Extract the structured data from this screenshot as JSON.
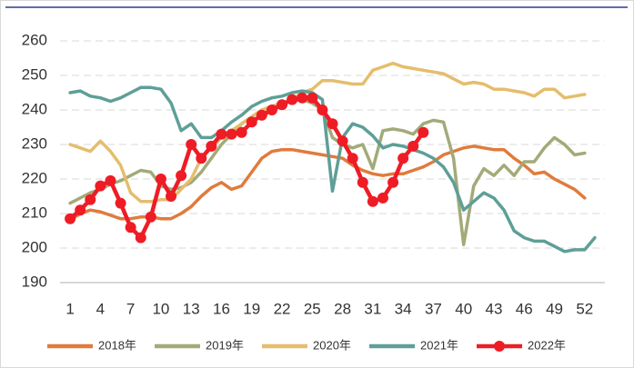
{
  "chart_data": {
    "type": "line",
    "x": [
      1,
      2,
      3,
      4,
      5,
      6,
      7,
      8,
      9,
      10,
      11,
      12,
      13,
      14,
      15,
      16,
      17,
      18,
      19,
      20,
      21,
      22,
      23,
      24,
      25,
      26,
      27,
      28,
      29,
      30,
      31,
      32,
      33,
      34,
      35,
      36,
      37,
      38,
      39,
      40,
      41,
      42,
      43,
      44,
      45,
      46,
      47,
      48,
      49,
      50,
      51,
      52,
      53
    ],
    "xlim": [
      0,
      54
    ],
    "xticks": [
      1,
      4,
      7,
      10,
      13,
      16,
      19,
      22,
      25,
      28,
      31,
      34,
      37,
      40,
      43,
      46,
      49,
      52
    ],
    "ylim": [
      190,
      260
    ],
    "yticks": [
      190,
      200,
      210,
      220,
      230,
      240,
      250,
      260
    ],
    "grid": true,
    "series": [
      {
        "name": "2018年",
        "color": "#e07b3c",
        "values": [
          208,
          210,
          211,
          210.5,
          209.5,
          208.5,
          208.5,
          209,
          209,
          208.5,
          208.5,
          210,
          212,
          215,
          217.5,
          219,
          217,
          218,
          222,
          226,
          228,
          228.5,
          228.5,
          228,
          227.5,
          227,
          226.5,
          226,
          224,
          222.5,
          221.5,
          221,
          221.5,
          221.5,
          222.5,
          223.5,
          225,
          227,
          228,
          229,
          229.5,
          229,
          228.5,
          228.5,
          226,
          224,
          221.5,
          222,
          220,
          218.5,
          217,
          214.5,
          null
        ]
      },
      {
        "name": "2019年",
        "color": "#a3aa78",
        "values": [
          213,
          214.5,
          216,
          217,
          218.5,
          219.5,
          221,
          222.5,
          222,
          218,
          217,
          217.5,
          219,
          222,
          226,
          230,
          233,
          236,
          238,
          240,
          241,
          242,
          242.5,
          243,
          242,
          240,
          232,
          230,
          229,
          230,
          223,
          234,
          234.5,
          234,
          233,
          236,
          237,
          236.5,
          226,
          201,
          218,
          223,
          221,
          224,
          221,
          225,
          225,
          229,
          232,
          230,
          227,
          227.5,
          null
        ]
      },
      {
        "name": "2020年",
        "color": "#e5bd6c",
        "values": [
          230,
          229,
          228,
          231,
          228,
          224,
          216,
          213.5,
          213.5,
          214,
          214,
          217,
          220,
          226,
          229,
          232,
          234,
          236,
          238,
          240,
          241,
          242,
          243,
          245,
          246,
          248.5,
          248.5,
          248,
          247.5,
          247.5,
          251.5,
          252.5,
          253.5,
          252.5,
          252,
          251.5,
          251,
          250.5,
          249,
          247.5,
          248,
          247.5,
          246,
          246,
          245.5,
          245,
          244,
          246,
          246,
          243.5,
          244,
          244.5,
          null
        ]
      },
      {
        "name": "2021年",
        "color": "#5e9f97",
        "values": [
          245,
          245.5,
          244,
          243.5,
          242.5,
          243.5,
          245,
          246.5,
          246.5,
          246,
          242,
          234,
          236,
          232,
          232,
          234,
          236.5,
          238.5,
          241,
          242.5,
          243.5,
          244,
          245,
          245.5,
          245,
          243,
          216.5,
          232,
          236,
          235,
          232.5,
          229,
          230,
          229.5,
          228.5,
          227.5,
          226,
          223.5,
          219,
          211,
          213.5,
          216,
          214.5,
          211,
          205,
          203,
          202,
          202,
          200.5,
          199,
          199.5,
          199.5,
          203
        ]
      },
      {
        "name": "2022年",
        "color": "#ee1c25",
        "markers": true,
        "values": [
          208.5,
          211,
          214,
          218,
          219.5,
          213,
          206,
          203,
          209,
          220,
          215,
          221,
          230,
          226,
          229.5,
          233,
          233,
          233.5,
          236.5,
          238.5,
          240,
          241.5,
          243,
          243.5,
          243.5,
          240,
          236,
          231,
          226,
          219,
          213.5,
          214.5,
          219,
          226,
          229.5,
          233.5,
          null,
          null,
          null,
          null,
          null,
          null,
          null,
          null,
          null,
          null,
          null,
          null,
          null,
          null,
          null,
          null,
          null
        ]
      }
    ]
  }
}
